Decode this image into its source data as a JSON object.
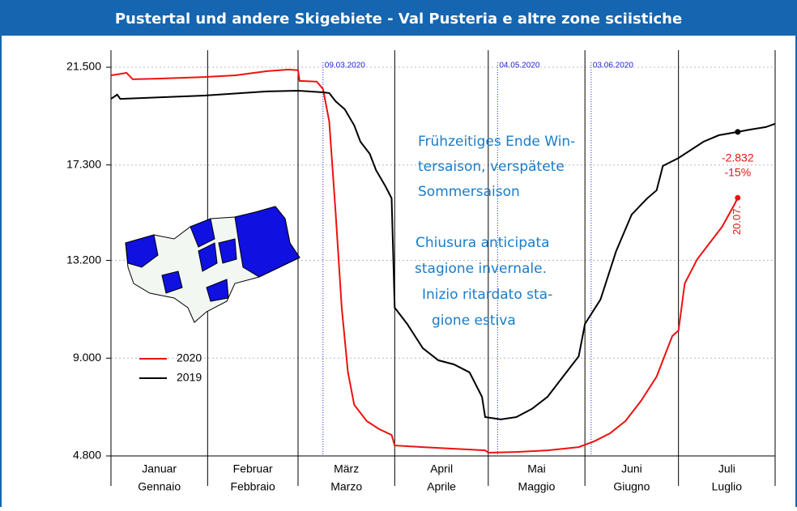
{
  "chart_data": {
    "type": "line",
    "title": "Pustertal und andere Skigebiete - Val Pusteria e altre zone sciistiche",
    "xlim": [
      0,
      213
    ],
    "xticks": [
      0,
      31,
      60,
      91,
      121,
      152,
      182,
      213
    ],
    "month_labels": [
      [
        "Januar",
        "Gennaio"
      ],
      [
        "Februar",
        "Febbraio"
      ],
      [
        "März",
        "Marzo"
      ],
      [
        "April",
        "Aprile"
      ],
      [
        "Mai",
        "Maggio"
      ],
      [
        "Juni",
        "Giugno"
      ],
      [
        "Juli",
        "Luglio"
      ]
    ],
    "ylim": [
      4800,
      22230
    ],
    "yticks": [
      {
        "value": 4800,
        "label": "4.800"
      },
      {
        "value": 9000,
        "label": "9.000"
      },
      {
        "value": 13200,
        "label": "13.200"
      },
      {
        "value": 17300,
        "label": "17.300"
      },
      {
        "value": 21500,
        "label": "21.500"
      }
    ],
    "grid": true,
    "series": [
      {
        "name": "2020",
        "color": "#ee1111",
        "x": [
          0,
          2,
          5,
          7,
          15,
          30,
          40,
          50,
          57,
          60,
          60.5,
          66,
          68,
          70,
          72,
          74,
          76,
          78,
          82,
          86,
          90,
          91,
          100,
          110,
          120,
          121,
          130,
          140,
          150,
          155,
          160,
          165,
          170,
          175,
          180,
          182,
          184,
          188,
          192,
          196,
          200,
          201
        ],
        "values": [
          21150,
          21190,
          21260,
          20980,
          21010,
          21080,
          21150,
          21330,
          21400,
          21370,
          20910,
          20880,
          20560,
          19170,
          15340,
          11170,
          8390,
          7000,
          6300,
          5950,
          5700,
          5250,
          5180,
          5110,
          5040,
          4940,
          4970,
          5040,
          5180,
          5430,
          5770,
          6300,
          7170,
          8210,
          9950,
          10190,
          12210,
          13250,
          13950,
          14650,
          15620,
          15888
        ]
      },
      {
        "name": "2019",
        "color": "#000000",
        "x": [
          0,
          2,
          3,
          30,
          50,
          60,
          68,
          70,
          72,
          75,
          78,
          80,
          83,
          85,
          88,
          90,
          91,
          95,
          100,
          105,
          110,
          115,
          119,
          120,
          125,
          130,
          135,
          140,
          145,
          150,
          152,
          157,
          162,
          167,
          172,
          175,
          177,
          182,
          190,
          195,
          201,
          205,
          210,
          213
        ],
        "values": [
          20140,
          20320,
          20140,
          20280,
          20460,
          20490,
          20420,
          20390,
          20040,
          19690,
          19000,
          18300,
          17780,
          17080,
          16390,
          15870,
          11170,
          10470,
          9430,
          8910,
          8730,
          8390,
          7340,
          6470,
          6370,
          6470,
          6820,
          7340,
          8210,
          9080,
          10470,
          11520,
          13600,
          15170,
          15870,
          16210,
          17260,
          17600,
          18300,
          18580,
          18720,
          18820,
          18930,
          19070
        ]
      }
    ],
    "legend": "upper-left",
    "events": [
      {
        "x": 68,
        "label": "09.03.2020"
      },
      {
        "x": 124,
        "label": "04.05.2020"
      },
      {
        "x": 154,
        "label": "03.06.2020"
      }
    ],
    "event_color": "#2222dd",
    "notes_de": [
      "Frühzeitiges Ende Win-",
      "tersaison, verspätete",
      "Sommersaison"
    ],
    "notes_it": [
      "Chiusura  anticipata",
      "stagione invernale.",
      "Inizio ritardato sta-",
      "gione estiva"
    ],
    "difference": {
      "x": 201,
      "date_label": "20.07.",
      "absolute": {
        "value": -2832,
        "label": "-2.832"
      },
      "percent": {
        "value": -15,
        "label": "-15%"
      }
    }
  }
}
